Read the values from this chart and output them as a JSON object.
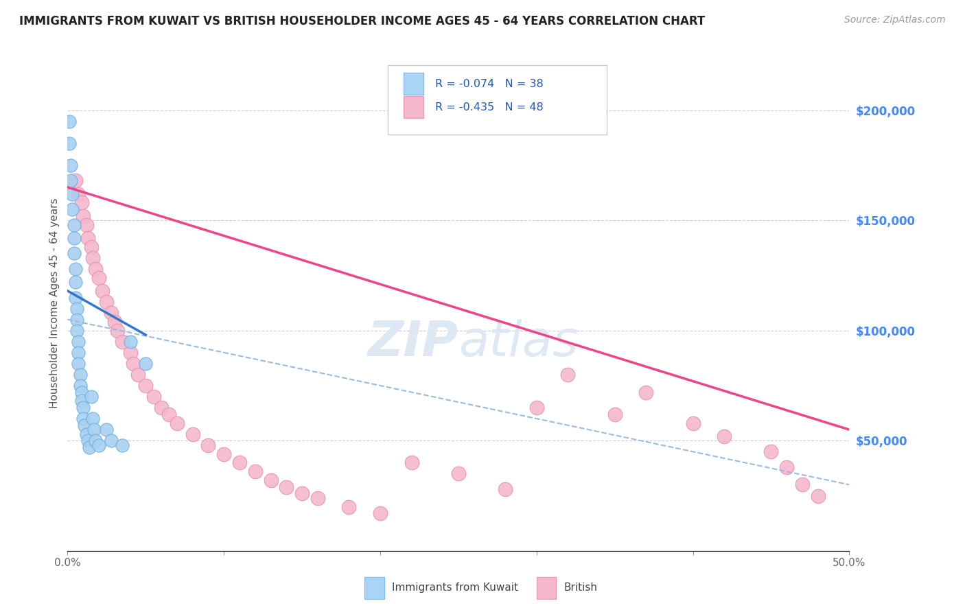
{
  "title": "IMMIGRANTS FROM KUWAIT VS BRITISH HOUSEHOLDER INCOME AGES 45 - 64 YEARS CORRELATION CHART",
  "source": "Source: ZipAtlas.com",
  "ylabel": "Householder Income Ages 45 - 64 years",
  "xlim": [
    0.0,
    0.5
  ],
  "ylim": [
    0,
    225000
  ],
  "xticks": [
    0.0,
    0.1,
    0.2,
    0.3,
    0.4,
    0.5
  ],
  "xticklabels": [
    "0.0%",
    "",
    "",
    "",
    "",
    "50.0%"
  ],
  "ytick_vals": [
    50000,
    100000,
    150000,
    200000
  ],
  "ytick_labels_right": [
    "$50,000",
    "$100,000",
    "$150,000",
    "$200,000"
  ],
  "legend_line1": "R = -0.074   N = 38",
  "legend_line2": "R = -0.435   N = 48",
  "color_kuwait_fill": "#a8d0f0",
  "color_kuwait_edge": "#6aaee0",
  "color_british_fill": "#f5b8cc",
  "color_british_edge": "#e890b0",
  "color_kuwait_line": "#3377cc",
  "color_british_line": "#ee4488",
  "color_dashed": "#99bbdd",
  "background_color": "#ffffff",
  "grid_color": "#cccccc",
  "right_tick_color": "#4488ff",
  "watermark_color": "#dde8f2",
  "kuwait_x": [
    0.001,
    0.001,
    0.002,
    0.002,
    0.003,
    0.003,
    0.004,
    0.004,
    0.004,
    0.005,
    0.005,
    0.005,
    0.006,
    0.006,
    0.006,
    0.007,
    0.007,
    0.007,
    0.008,
    0.008,
    0.009,
    0.009,
    0.01,
    0.01,
    0.011,
    0.012,
    0.013,
    0.014,
    0.015,
    0.016,
    0.017,
    0.018,
    0.02,
    0.025,
    0.028,
    0.035,
    0.04,
    0.05
  ],
  "kuwait_y": [
    195000,
    185000,
    175000,
    168000,
    162000,
    155000,
    148000,
    142000,
    135000,
    128000,
    122000,
    115000,
    110000,
    105000,
    100000,
    95000,
    90000,
    85000,
    80000,
    75000,
    72000,
    68000,
    65000,
    60000,
    57000,
    53000,
    50000,
    47000,
    70000,
    60000,
    55000,
    50000,
    48000,
    55000,
    50000,
    48000,
    95000,
    85000
  ],
  "british_x": [
    0.005,
    0.007,
    0.009,
    0.01,
    0.012,
    0.013,
    0.015,
    0.016,
    0.018,
    0.02,
    0.022,
    0.025,
    0.028,
    0.03,
    0.032,
    0.035,
    0.04,
    0.042,
    0.045,
    0.05,
    0.055,
    0.06,
    0.065,
    0.07,
    0.08,
    0.09,
    0.1,
    0.11,
    0.12,
    0.13,
    0.14,
    0.15,
    0.16,
    0.18,
    0.2,
    0.22,
    0.25,
    0.28,
    0.3,
    0.32,
    0.35,
    0.37,
    0.4,
    0.42,
    0.45,
    0.46,
    0.47,
    0.48
  ],
  "british_y": [
    168000,
    162000,
    158000,
    152000,
    148000,
    142000,
    138000,
    133000,
    128000,
    124000,
    118000,
    113000,
    108000,
    104000,
    100000,
    95000,
    90000,
    85000,
    80000,
    75000,
    70000,
    65000,
    62000,
    58000,
    53000,
    48000,
    44000,
    40000,
    36000,
    32000,
    29000,
    26000,
    24000,
    20000,
    17000,
    40000,
    35000,
    28000,
    65000,
    80000,
    62000,
    72000,
    58000,
    52000,
    45000,
    38000,
    30000,
    25000
  ],
  "kuwait_line_x": [
    0.0,
    0.05
  ],
  "kuwait_line_y": [
    118000,
    98000
  ],
  "british_line_x": [
    0.0,
    0.5
  ],
  "british_line_y": [
    165000,
    55000
  ],
  "dashed_line_x": [
    0.0,
    0.5
  ],
  "dashed_line_y": [
    105000,
    30000
  ]
}
